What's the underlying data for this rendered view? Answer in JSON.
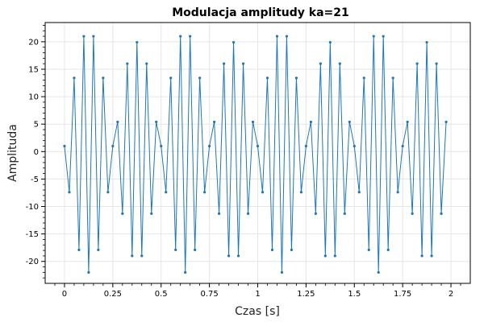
{
  "chart_data": {
    "type": "line",
    "title": "Modulacja amplitudy ka=21",
    "xlabel": "Czas [s]",
    "ylabel": "Amplituda",
    "xlim": [
      -0.1,
      2.1
    ],
    "ylim": [
      -24,
      23.5
    ],
    "xticks": [
      0,
      0.25,
      0.5,
      0.75,
      1,
      1.25,
      1.5,
      1.75,
      2
    ],
    "xtick_labels": [
      "0",
      "0.25",
      "0.5",
      "0.75",
      "1",
      "1.25",
      "1.5",
      "1.75",
      "2"
    ],
    "yticks": [
      -20,
      -15,
      -10,
      -5,
      0,
      5,
      10,
      15,
      20
    ],
    "ytick_labels": [
      "-20",
      "-15",
      "-10",
      "-5",
      "0",
      "5",
      "10",
      "15",
      "20"
    ],
    "grid": true,
    "line_color": "#1f77b4",
    "series": [
      {
        "marker": "dot",
        "x": [
          0,
          0.025,
          0.05,
          0.075,
          0.1,
          0.125,
          0.15,
          0.175,
          0.2,
          0.225,
          0.25,
          0.275,
          0.3,
          0.325,
          0.35,
          0.375,
          0.4,
          0.425,
          0.45,
          0.475,
          0.5,
          0.525,
          0.55,
          0.575,
          0.6,
          0.625,
          0.65,
          0.675,
          0.7,
          0.725,
          0.75,
          0.775,
          0.8,
          0.825,
          0.85,
          0.875,
          0.9,
          0.925,
          0.95,
          0.975,
          1,
          1.025,
          1.05,
          1.075,
          1.1,
          1.125,
          1.15,
          1.175,
          1.2,
          1.225,
          1.25,
          1.275,
          1.3,
          1.325,
          1.35,
          1.375,
          1.4,
          1.425,
          1.45,
          1.475,
          1.5,
          1.525,
          1.55,
          1.575,
          1.6,
          1.625,
          1.65,
          1.675,
          1.7,
          1.725,
          1.75,
          1.775,
          1.8,
          1.825,
          1.85,
          1.875,
          1.9,
          1.925,
          1.95,
          1.975
        ],
        "values": [
          1,
          -7.4,
          13.4,
          -17.9,
          21,
          -22,
          21,
          -17.9,
          13.4,
          -7.4,
          1,
          5.4,
          -11.3,
          16,
          -19,
          19.9,
          -19,
          16,
          -11.3,
          5.4,
          1,
          -7.4,
          13.4,
          -17.9,
          21,
          -22,
          21,
          -17.9,
          13.4,
          -7.4,
          1,
          5.4,
          -11.3,
          16,
          -19,
          19.9,
          -19,
          16,
          -11.3,
          5.4,
          1,
          -7.4,
          13.4,
          -17.9,
          21,
          -22,
          21,
          -17.9,
          13.4,
          -7.4,
          1,
          5.4,
          -11.3,
          16,
          -19,
          19.9,
          -19,
          16,
          -11.3,
          5.4,
          1,
          -7.4,
          13.4,
          -17.9,
          21,
          -22,
          21,
          -17.9,
          13.4,
          -7.4,
          1,
          5.4,
          -11.3,
          16,
          -19,
          19.9,
          -19,
          16,
          -11.3,
          5.4
        ]
      }
    ]
  }
}
